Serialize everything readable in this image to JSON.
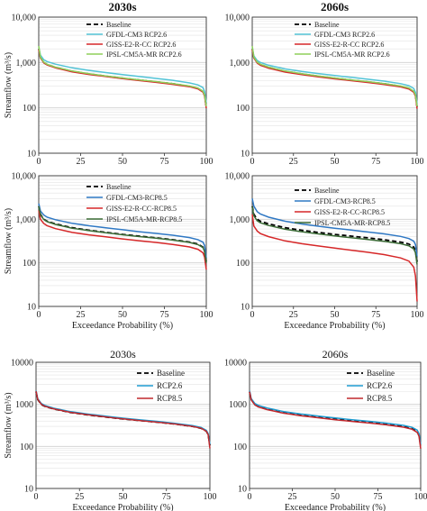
{
  "chart_data": [
    {
      "type": "line",
      "title": "2030s",
      "xlabel": "",
      "ylabel": "Streamflow (m³/s)",
      "y_scale": "log",
      "xlim": [
        0,
        100
      ],
      "ylim": [
        10,
        10000
      ],
      "x_ticks": [
        "0",
        "25",
        "50",
        "75",
        "100"
      ],
      "y_ticks": [
        "10",
        "100",
        "1,000",
        "10,000"
      ],
      "legend_position": "top-right",
      "series": [
        {
          "name": "Baseline",
          "color": "#000000",
          "dash": "dashed",
          "x": [
            0,
            1,
            3,
            5,
            10,
            20,
            30,
            40,
            50,
            60,
            70,
            80,
            90,
            95,
            98,
            99,
            100
          ],
          "y": [
            2000,
            1300,
            1000,
            900,
            780,
            640,
            560,
            500,
            450,
            410,
            375,
            340,
            300,
            270,
            230,
            190,
            105
          ]
        },
        {
          "name": "GFDL-CM3 RCP2.6",
          "color": "#52c3d6",
          "dash": "solid",
          "x": [
            0,
            1,
            3,
            5,
            10,
            20,
            30,
            40,
            50,
            60,
            70,
            80,
            90,
            95,
            98,
            99,
            100
          ],
          "y": [
            2200,
            1450,
            1150,
            1050,
            920,
            760,
            670,
            600,
            540,
            490,
            445,
            405,
            355,
            320,
            280,
            230,
            130
          ]
        },
        {
          "name": "GISS-E2-R-CC RCP2.6",
          "color": "#d62728",
          "dash": "solid",
          "x": [
            0,
            1,
            3,
            5,
            10,
            20,
            30,
            40,
            50,
            60,
            70,
            80,
            90,
            95,
            98,
            99,
            100
          ],
          "y": [
            1950,
            1270,
            980,
            880,
            760,
            620,
            545,
            490,
            440,
            400,
            365,
            330,
            292,
            262,
            222,
            182,
            98
          ]
        },
        {
          "name": "IPSL-CM5A-MR RCP2.6",
          "color": "#8fcf5a",
          "dash": "solid",
          "x": [
            0,
            1,
            3,
            5,
            10,
            20,
            30,
            40,
            50,
            60,
            70,
            80,
            90,
            95,
            98,
            99,
            100
          ],
          "y": [
            2300,
            1320,
            1020,
            915,
            790,
            650,
            568,
            507,
            456,
            415,
            380,
            344,
            304,
            274,
            233,
            193,
            108
          ]
        }
      ]
    },
    {
      "type": "line",
      "title": "2060s",
      "xlabel": "",
      "ylabel": "",
      "y_scale": "log",
      "xlim": [
        0,
        100
      ],
      "ylim": [
        10,
        10000
      ],
      "x_ticks": [
        "0",
        "25",
        "50",
        "75",
        "100"
      ],
      "y_ticks": [
        "10",
        "100",
        "1,000",
        "10,000"
      ],
      "legend_position": "top-right",
      "series": [
        {
          "name": "Baseline",
          "color": "#000000",
          "dash": "dashed",
          "x": [
            0,
            1,
            3,
            5,
            10,
            20,
            30,
            40,
            50,
            60,
            70,
            80,
            90,
            95,
            98,
            99,
            100
          ],
          "y": [
            2000,
            1300,
            1000,
            900,
            780,
            640,
            560,
            500,
            450,
            410,
            375,
            340,
            300,
            270,
            230,
            190,
            105
          ]
        },
        {
          "name": "GFDL-CM3 RCP2.6",
          "color": "#52c3d6",
          "dash": "solid",
          "x": [
            0,
            1,
            3,
            5,
            10,
            20,
            30,
            40,
            50,
            60,
            70,
            80,
            90,
            95,
            98,
            99,
            100
          ],
          "y": [
            2150,
            1400,
            1100,
            1000,
            870,
            720,
            635,
            570,
            515,
            470,
            428,
            388,
            342,
            308,
            268,
            220,
            125
          ]
        },
        {
          "name": "GISS-E2-R-CC RCP2.6",
          "color": "#d62728",
          "dash": "solid",
          "x": [
            0,
            1,
            3,
            5,
            10,
            20,
            30,
            40,
            50,
            60,
            70,
            80,
            90,
            95,
            98,
            99,
            100
          ],
          "y": [
            1950,
            1260,
            970,
            870,
            750,
            615,
            540,
            485,
            436,
            397,
            362,
            328,
            290,
            260,
            220,
            180,
            96
          ]
        },
        {
          "name": "IPSL-CM5A-MR RCP2.6",
          "color": "#8fcf5a",
          "dash": "solid",
          "x": [
            0,
            1,
            3,
            5,
            10,
            20,
            30,
            40,
            50,
            60,
            70,
            80,
            90,
            95,
            98,
            99,
            100
          ],
          "y": [
            2300,
            1320,
            1020,
            915,
            790,
            650,
            568,
            507,
            456,
            415,
            380,
            344,
            304,
            274,
            233,
            193,
            108
          ]
        }
      ]
    },
    {
      "type": "line",
      "title": "",
      "xlabel": "Exceedance Probability (%)",
      "ylabel": "Streamflow (m³/s)",
      "y_scale": "log",
      "xlim": [
        0,
        100
      ],
      "ylim": [
        10,
        10000
      ],
      "x_ticks": [
        "0",
        "25",
        "50",
        "75",
        "100"
      ],
      "y_ticks": [
        "10",
        "100",
        "1,000",
        "10,000"
      ],
      "legend_position": "top-right",
      "series": [
        {
          "name": "Baseline",
          "color": "#000000",
          "dash": "dashed",
          "x": [
            0,
            1,
            3,
            5,
            10,
            20,
            30,
            40,
            50,
            60,
            70,
            80,
            90,
            95,
            98,
            99,
            100
          ],
          "y": [
            2000,
            1300,
            1000,
            900,
            780,
            640,
            560,
            500,
            450,
            410,
            375,
            340,
            300,
            270,
            230,
            190,
            105
          ]
        },
        {
          "name": "GFDL-CM3-RCP8.5",
          "color": "#2f78c4",
          "dash": "solid",
          "x": [
            0,
            1,
            3,
            5,
            10,
            20,
            30,
            40,
            50,
            60,
            70,
            80,
            90,
            95,
            98,
            99,
            100
          ],
          "y": [
            2300,
            1550,
            1250,
            1120,
            980,
            810,
            710,
            640,
            575,
            520,
            475,
            432,
            380,
            342,
            298,
            250,
            130
          ]
        },
        {
          "name": "GISS-E2-R-CC-RCP8.5",
          "color": "#d62728",
          "dash": "solid",
          "x": [
            0,
            1,
            3,
            5,
            10,
            20,
            30,
            40,
            50,
            60,
            70,
            80,
            90,
            95,
            98,
            99,
            100
          ],
          "y": [
            1600,
            1000,
            800,
            710,
            610,
            500,
            440,
            395,
            355,
            322,
            294,
            265,
            232,
            205,
            170,
            135,
            70
          ]
        },
        {
          "name": "IPSL-CM5A-MR-RCP8.5",
          "color": "#3a6b35",
          "dash": "solid",
          "x": [
            0,
            1,
            3,
            5,
            10,
            20,
            30,
            40,
            50,
            60,
            70,
            80,
            90,
            95,
            98,
            99,
            100
          ],
          "y": [
            2000,
            1280,
            990,
            885,
            765,
            625,
            550,
            492,
            442,
            402,
            368,
            333,
            294,
            263,
            224,
            184,
            100
          ]
        }
      ]
    },
    {
      "type": "line",
      "title": "",
      "xlabel": "Exceedance Probability (%)",
      "ylabel": "",
      "y_scale": "log",
      "xlim": [
        0,
        100
      ],
      "ylim": [
        10,
        10000
      ],
      "x_ticks": [
        "0",
        "25",
        "50",
        "75",
        "100"
      ],
      "y_ticks": [
        "10",
        "100",
        "1,000",
        "10,000"
      ],
      "legend_position": "top-right",
      "series": [
        {
          "name": "Baseline",
          "color": "#000000",
          "dash": "dashed",
          "x": [
            0,
            1,
            3,
            5,
            10,
            20,
            30,
            40,
            50,
            60,
            70,
            80,
            90,
            95,
            98,
            99,
            100
          ],
          "y": [
            2000,
            1300,
            1000,
            900,
            780,
            640,
            560,
            500,
            450,
            410,
            375,
            340,
            300,
            270,
            230,
            190,
            105
          ]
        },
        {
          "name": "GFDL-CM3-RCP8.5",
          "color": "#2f78c4",
          "dash": "solid",
          "x": [
            0,
            1,
            3,
            5,
            10,
            20,
            30,
            40,
            50,
            60,
            70,
            80,
            90,
            95,
            98,
            99,
            100
          ],
          "y": [
            3000,
            2000,
            1500,
            1320,
            1120,
            900,
            780,
            695,
            625,
            565,
            512,
            462,
            405,
            362,
            315,
            262,
            140
          ]
        },
        {
          "name": "GISS-E2-R-CC-RCP8.5",
          "color": "#d62728",
          "dash": "solid",
          "x": [
            0,
            1,
            3,
            5,
            10,
            20,
            30,
            40,
            50,
            60,
            70,
            80,
            90,
            95,
            98,
            99,
            100
          ],
          "y": [
            1300,
            700,
            540,
            470,
            400,
            320,
            275,
            245,
            218,
            195,
            175,
            155,
            130,
            110,
            80,
            50,
            13
          ]
        },
        {
          "name": "IPSL-CM5A-MR-RCP8.5",
          "color": "#3a6b35",
          "dash": "solid",
          "x": [
            0,
            1,
            3,
            5,
            10,
            20,
            30,
            40,
            50,
            60,
            70,
            80,
            90,
            95,
            98,
            99,
            100
          ],
          "y": [
            1950,
            1200,
            930,
            830,
            720,
            590,
            518,
            462,
            415,
            378,
            345,
            312,
            275,
            246,
            208,
            170,
            92
          ]
        }
      ]
    },
    {
      "type": "line",
      "title": "2030s",
      "xlabel": "Exceedance Probability (%)",
      "ylabel": "Streamflow (m³/s)",
      "y_scale": "log",
      "xlim": [
        0,
        100
      ],
      "ylim": [
        10,
        10000
      ],
      "x_ticks": [
        "0",
        "25",
        "50",
        "75",
        "100"
      ],
      "y_ticks": [
        "10",
        "100",
        "1000",
        "10000"
      ],
      "legend_position": "top-right",
      "series": [
        {
          "name": "Baseline",
          "color": "#000000",
          "dash": "dashed",
          "x": [
            0,
            1,
            3,
            5,
            10,
            20,
            30,
            40,
            50,
            60,
            70,
            80,
            90,
            95,
            98,
            99,
            100
          ],
          "y": [
            2000,
            1300,
            1000,
            900,
            780,
            640,
            560,
            500,
            450,
            410,
            375,
            340,
            300,
            270,
            230,
            190,
            105
          ]
        },
        {
          "name": "RCP2.6",
          "color": "#1f9bd0",
          "dash": "solid",
          "x": [
            0,
            1,
            3,
            5,
            10,
            20,
            30,
            40,
            50,
            60,
            70,
            80,
            90,
            95,
            98,
            99,
            100
          ],
          "y": [
            2100,
            1360,
            1050,
            945,
            815,
            668,
            585,
            522,
            470,
            428,
            392,
            355,
            313,
            282,
            241,
            200,
            112
          ]
        },
        {
          "name": "RCP8.5",
          "color": "#c0282d",
          "dash": "solid",
          "x": [
            0,
            1,
            3,
            5,
            10,
            20,
            30,
            40,
            50,
            60,
            70,
            80,
            90,
            95,
            98,
            99,
            100
          ],
          "y": [
            2050,
            1320,
            1010,
            905,
            785,
            643,
            562,
            502,
            452,
            411,
            376,
            341,
            300,
            270,
            229,
            188,
            90
          ]
        }
      ]
    },
    {
      "type": "line",
      "title": "2060s",
      "xlabel": "Exceedance Probability (%)",
      "ylabel": "",
      "y_scale": "log",
      "xlim": [
        0,
        100
      ],
      "ylim": [
        10,
        10000
      ],
      "x_ticks": [
        "0",
        "25",
        "50",
        "75",
        "100"
      ],
      "y_ticks": [
        "10",
        "100",
        "1000",
        "10000"
      ],
      "legend_position": "top-right",
      "series": [
        {
          "name": "Baseline",
          "color": "#000000",
          "dash": "dashed",
          "x": [
            0,
            1,
            3,
            5,
            10,
            20,
            30,
            40,
            50,
            60,
            70,
            80,
            90,
            95,
            98,
            99,
            100
          ],
          "y": [
            2000,
            1300,
            1000,
            900,
            780,
            640,
            560,
            500,
            450,
            410,
            375,
            340,
            300,
            270,
            230,
            190,
            105
          ]
        },
        {
          "name": "RCP2.6",
          "color": "#1f9bd0",
          "dash": "solid",
          "x": [
            0,
            1,
            3,
            5,
            10,
            20,
            30,
            40,
            50,
            60,
            70,
            80,
            90,
            95,
            98,
            99,
            100
          ],
          "y": [
            2100,
            1370,
            1060,
            952,
            822,
            673,
            590,
            527,
            474,
            432,
            395,
            358,
            316,
            284,
            243,
            202,
            112
          ]
        },
        {
          "name": "RCP8.5",
          "color": "#c0282d",
          "dash": "solid",
          "x": [
            0,
            1,
            3,
            5,
            10,
            20,
            30,
            40,
            50,
            60,
            70,
            80,
            90,
            95,
            98,
            99,
            100
          ],
          "y": [
            2000,
            1280,
            980,
            875,
            755,
            615,
            538,
            480,
            432,
            393,
            359,
            325,
            286,
            256,
            215,
            174,
            88
          ]
        }
      ]
    }
  ]
}
